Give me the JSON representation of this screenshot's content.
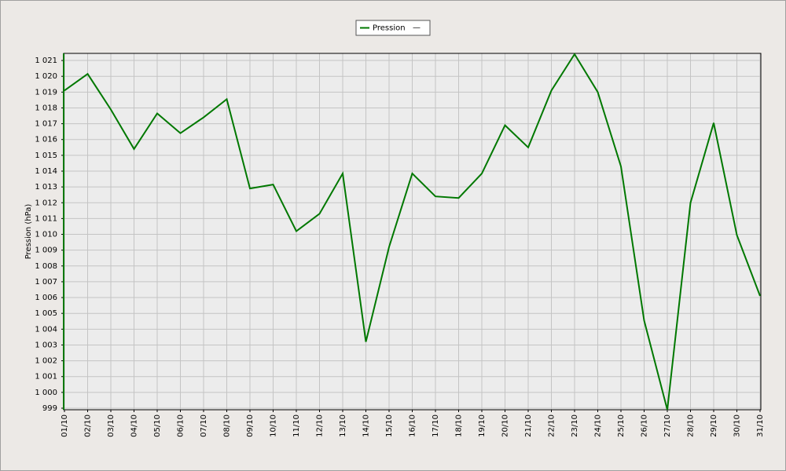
{
  "chart_data": {
    "type": "line",
    "y_label": "Pression (hPa)",
    "legend_extra": "—",
    "categories": [
      "01/10",
      "02/10",
      "03/10",
      "04/10",
      "05/10",
      "06/10",
      "07/10",
      "08/10",
      "09/10",
      "10/10",
      "11/10",
      "12/10",
      "13/10",
      "14/10",
      "15/10",
      "16/10",
      "17/10",
      "18/10",
      "19/10",
      "20/10",
      "21/10",
      "22/10",
      "23/10",
      "24/10",
      "25/10",
      "26/10",
      "27/10",
      "28/10",
      "29/10",
      "30/10",
      "31/10"
    ],
    "series": [
      {
        "name": "Pression",
        "color": "#007800",
        "values": [
          1019.1,
          1020.15,
          1017.9,
          1015.4,
          1017.65,
          1016.4,
          1017.4,
          1018.55,
          1012.9,
          1013.15,
          1010.2,
          1011.3,
          1013.85,
          1003.2,
          1009.2,
          1013.85,
          1012.4,
          1012.3,
          1013.85,
          1016.9,
          1015.5,
          1019.1,
          1021.4,
          1019.0,
          1014.3,
          1004.55,
          998.9,
          1012.0,
          1017.05,
          1009.95,
          1006.1
        ]
      }
    ],
    "ylim": [
      998.9,
      1021.45
    ],
    "yticks": [
      999,
      {
        "value": 1000,
        "label": "1 000"
      },
      {
        "value": 1001,
        "label": "1 001"
      },
      {
        "value": 1002,
        "label": "1 002"
      },
      {
        "value": 1003,
        "label": "1 003"
      },
      {
        "value": 1004,
        "label": "1 004"
      },
      {
        "value": 1005,
        "label": "1 005"
      },
      {
        "value": 1006,
        "label": "1 006"
      },
      {
        "value": 1007,
        "label": "1 007"
      },
      {
        "value": 1008,
        "label": "1 008"
      },
      {
        "value": 1009,
        "label": "1 009"
      },
      {
        "value": 1010,
        "label": "1 010"
      },
      {
        "value": 1011,
        "label": "1 011"
      },
      {
        "value": 1012,
        "label": "1 012"
      },
      {
        "value": 1013,
        "label": "1 013"
      },
      {
        "value": 1014,
        "label": "1 014"
      },
      {
        "value": 1015,
        "label": "1 015"
      },
      {
        "value": 1016,
        "label": "1 016"
      },
      {
        "value": 1017,
        "label": "1 017"
      },
      {
        "value": 1018,
        "label": "1 018"
      },
      {
        "value": 1019,
        "label": "1 019"
      },
      {
        "value": 1020,
        "label": "1 020"
      },
      {
        "value": 1021,
        "label": "1 021"
      }
    ],
    "grid": true
  }
}
